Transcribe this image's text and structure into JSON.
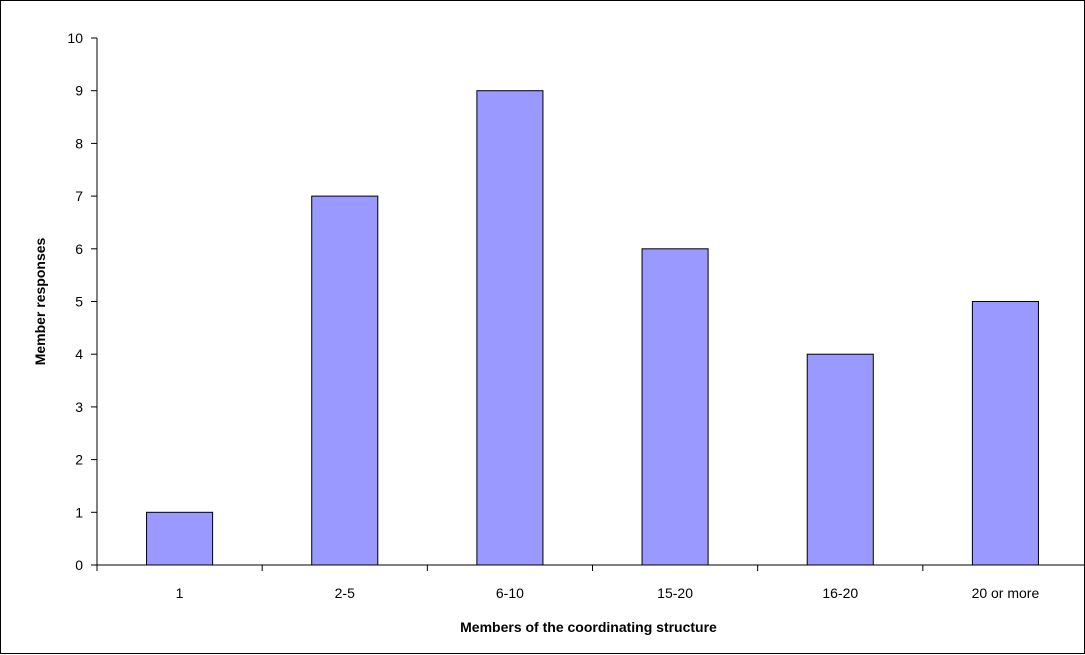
{
  "chart_data": {
    "type": "bar",
    "title": "",
    "xlabel": "Members of the coordinating structure",
    "ylabel": "Member responses",
    "categories": [
      "1",
      "2-5",
      "6-10",
      "15-20",
      "16-20",
      "20 or more"
    ],
    "values": [
      1,
      7,
      9,
      6,
      4,
      5
    ],
    "ylim": [
      0,
      10
    ],
    "yticks": [
      "0",
      "1",
      "2",
      "3",
      "4",
      "5",
      "6",
      "7",
      "8",
      "9",
      "10"
    ],
    "grid": false,
    "legend": "none",
    "colors": {
      "bar_fill": "#9999FF",
      "bar_stroke": "#000000"
    }
  }
}
